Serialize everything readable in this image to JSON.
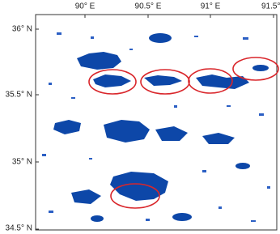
{
  "map": {
    "x_labels": [
      "90° E",
      "90.5° E",
      "91° E",
      "91.5°"
    ],
    "y_labels": [
      "36° N",
      "35.5° N",
      "35° N",
      "34.5° N"
    ]
  }
}
